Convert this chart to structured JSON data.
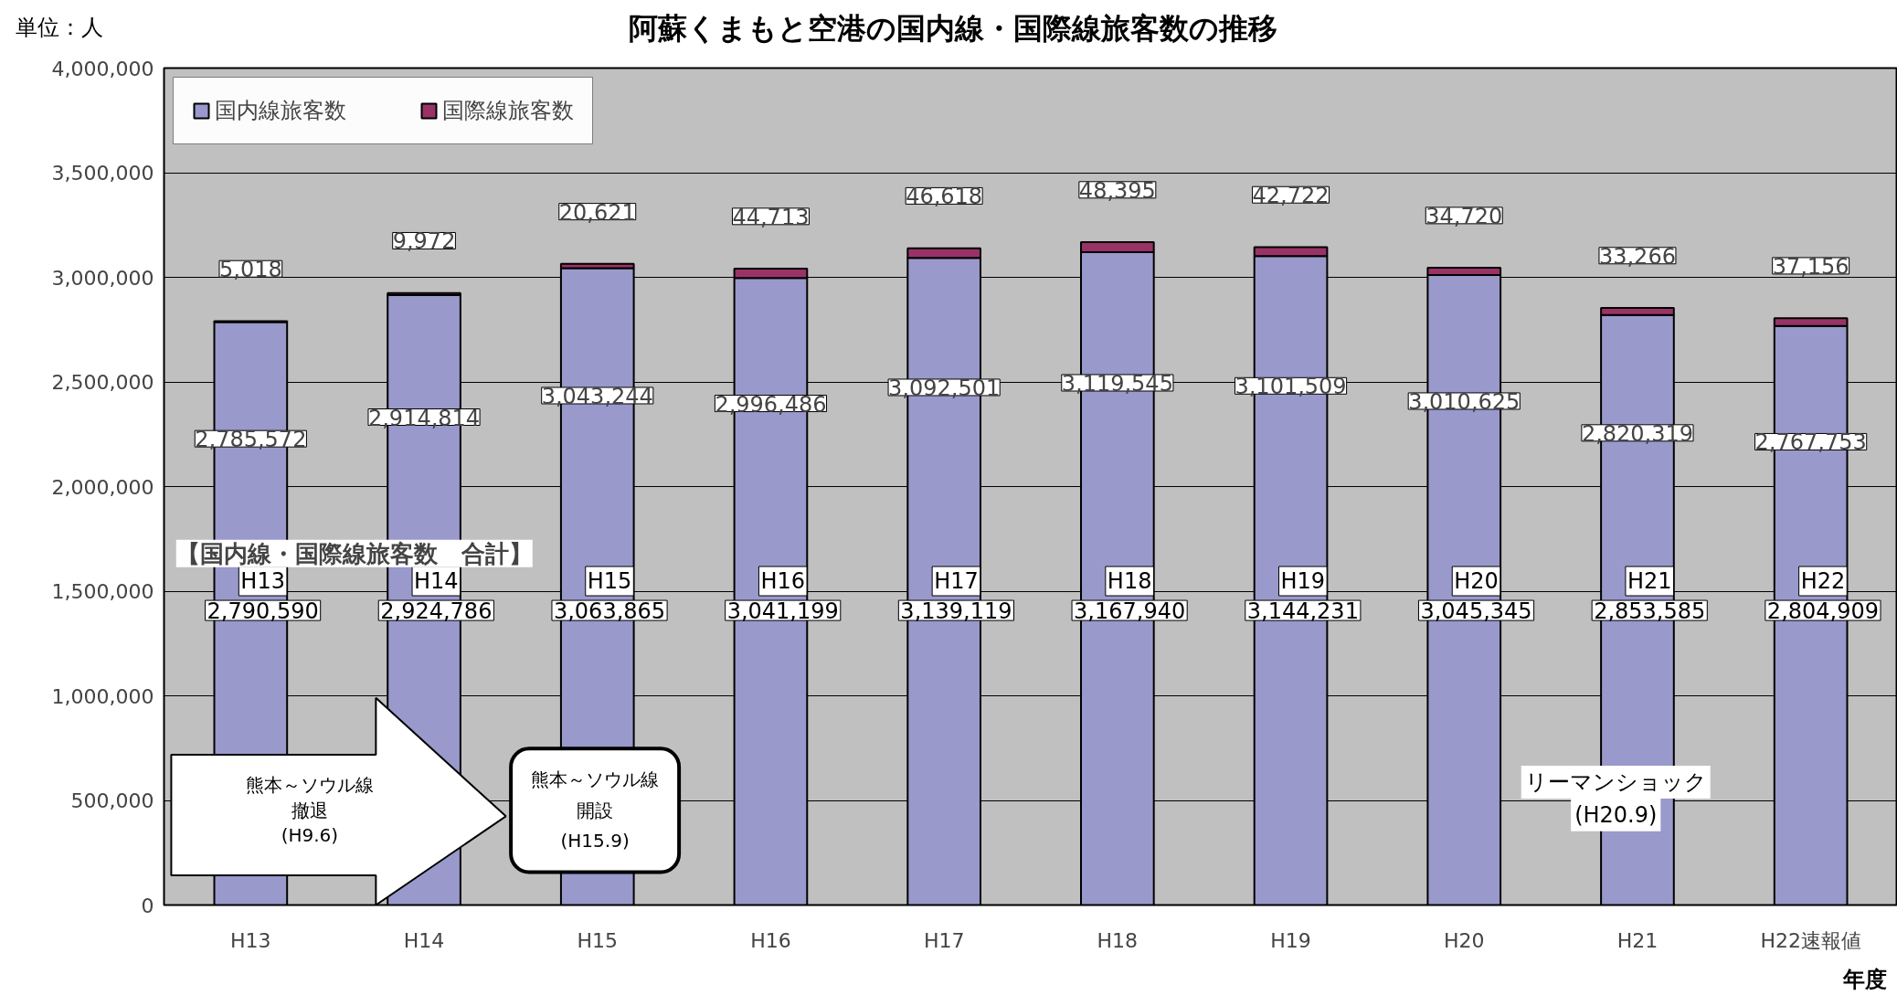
{
  "chart_data": {
    "type": "bar",
    "stacked": true,
    "title": "阿蘇くまもと空港の国内線・国際線旅客数の推移",
    "ylabel": "単位：人",
    "xlabel": "年度",
    "categories": [
      "H13",
      "H14",
      "H15",
      "H16",
      "H17",
      "H18",
      "H19",
      "H20",
      "H21",
      "H22速報値"
    ],
    "series": [
      {
        "name": "国内線旅客数",
        "color": "#9999cc",
        "values": [
          2785572,
          2914814,
          3043244,
          2996486,
          3092501,
          3119545,
          3101509,
          3010625,
          2820319,
          2767753
        ],
        "value_labels": [
          "2,785,572",
          "2,914,814",
          "3,043,244",
          "2,996,486",
          "3,092,501",
          "3,119,545",
          "3,101,509",
          "3,010,625",
          "2,820,319",
          "2,767,753"
        ]
      },
      {
        "name": "国際線旅客数",
        "color": "#993366",
        "values": [
          5018,
          9972,
          20621,
          44713,
          46618,
          48395,
          42722,
          34720,
          33266,
          37156
        ],
        "value_labels": [
          "5,018",
          "9,972",
          "20,621",
          "44,713",
          "46,618",
          "48,395",
          "42,722",
          "34,720",
          "33,266",
          "37,156"
        ]
      }
    ],
    "totals": [
      "2,790,590",
      "2,924,786",
      "3,063,865",
      "3,041,199",
      "3,139,119",
      "3,167,940",
      "3,144,231",
      "3,045,345",
      "2,853,585",
      "2,804,909"
    ],
    "ylim": [
      0,
      4000000
    ],
    "yticks": [
      {
        "value": 0,
        "label": "0"
      },
      {
        "value": 500000,
        "label": "500,000"
      },
      {
        "value": 1000000,
        "label": "1,000,000"
      },
      {
        "value": 1500000,
        "label": "1,500,000"
      },
      {
        "value": 2000000,
        "label": "2,000,000"
      },
      {
        "value": 2500000,
        "label": "2,500,000"
      },
      {
        "value": 3000000,
        "label": "3,000,000"
      },
      {
        "value": 3500000,
        "label": "3,500,000"
      },
      {
        "value": 4000000,
        "label": "4,000,000"
      }
    ],
    "grid": "y",
    "legend": "top left",
    "annotations": [
      "【国内線・国際線旅客数　合計】",
      "H13",
      "H14",
      "H15",
      "H16",
      "H17",
      "H18",
      "H19",
      "H20",
      "H21",
      "H22",
      "熊本～ソウル線",
      "撤退",
      "(H9.6)",
      "熊本～ソウル線",
      "開設",
      "(H15.9)",
      "リーマンショック",
      "(H20.9)"
    ]
  }
}
